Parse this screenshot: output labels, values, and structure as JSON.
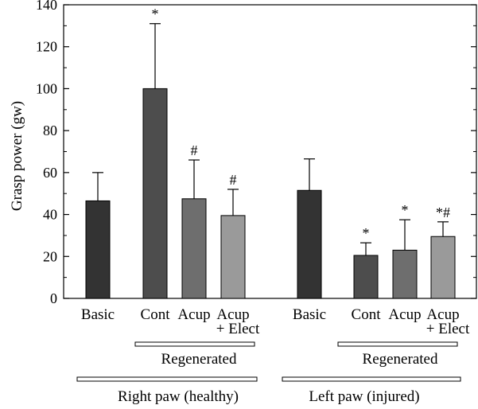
{
  "chart_data": {
    "type": "bar",
    "ylabel": "Grasp power (gw)",
    "ylim": [
      0,
      140
    ],
    "y_ticks": [
      "0",
      "20",
      "40",
      "60",
      "80",
      "100",
      "120",
      "140"
    ],
    "categories": [
      "Basic",
      "Cont",
      "Acup",
      "Acup\n+ Elect",
      "Basic",
      "Cont",
      "Acup",
      "Acup\n+ Elect"
    ],
    "values": [
      46.5,
      100,
      47.5,
      39.5,
      51.5,
      20.5,
      23,
      29.5
    ],
    "error_upper": [
      60,
      131,
      66,
      52,
      66.5,
      26.5,
      37.5,
      36.5
    ],
    "bar_colors": [
      "#333333",
      "#4d4d4d",
      "#6e6e6e",
      "#9a9a9a",
      "#333333",
      "#4d4d4d",
      "#6e6e6e",
      "#9a9a9a"
    ],
    "annotations": [
      "",
      "*",
      "#",
      "#",
      "",
      "*",
      "*",
      "*#"
    ],
    "group_labels": {
      "regenerated_right": "Regenerated",
      "regenerated_left": "Regenerated",
      "right_paw": "Right paw (healthy)",
      "left_paw": "Left paw (injured)"
    }
  }
}
